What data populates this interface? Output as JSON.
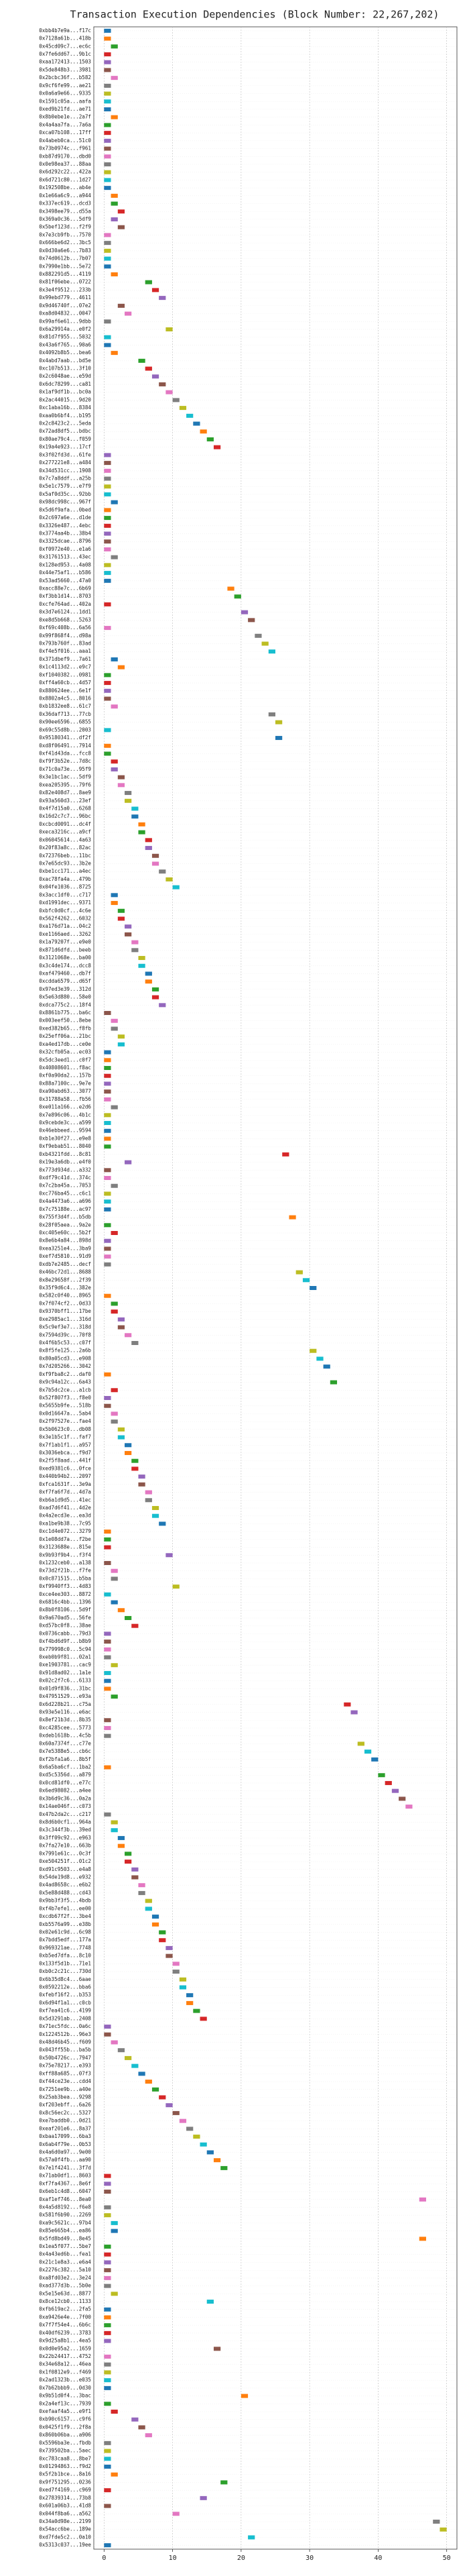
{
  "chart_data": {
    "type": "gantt",
    "title": "Transaction Execution Dependencies (Block Number: 22,267,202)",
    "categories": [
      "0xbb4b7e9a...f17c",
      "0x7128a61b...418b",
      "0x45cd09c7...ec6c",
      "0x7fe6dd67...9b1c",
      "0xaa172413...1503",
      "0x5de848b3...3981",
      "0x2bcbc36f...b582",
      "0x9cf6fe99...ae21",
      "0x0a6a9e66...9335",
      "0x1591c05a...aafa",
      "0xed9b21fd...ae71",
      "0x8b0ebe1e...2a7f",
      "0x4a4aa7fa...7a6a",
      "0xca07b108...17ff",
      "0x4abeb0ca...51c0",
      "0x73b0974c...f961",
      "0xb87d9170...dbd0",
      "0x0e98ea37...88aa",
      "0x6d292c22...422a",
      "0x6d721c80...1d27",
      "0x192508be...ab4e",
      "0x1e66a6c9...a944",
      "0x337ec619...dcd3",
      "0x3498ee79...d55a",
      "0x369a0c36...5df9",
      "0x5bef123d...f2f9",
      "0x7e3cb9fb...7570",
      "0x666be6d2...3bc5",
      "0x0d30a6e6...7b83",
      "0x74d0612b...7b07",
      "0x7990e1bb...5e72",
      "0x882291d5...4119",
      "0x81f06ebe...0722",
      "0x3e4f9512...233b",
      "0x99ebd779...4611",
      "0x9d46740f...07e2",
      "0xa8d04832...0047",
      "0x99af6e61...9dbb",
      "0x6a29914a...e0f2",
      "0x81d7f955...5032",
      "0x43a6f765...90a6",
      "0x4092b8b5...bea6",
      "0x4abd7aab...bd5e",
      "0xc107b513...3f10",
      "0x2c6048ae...e59d",
      "0x6dc78299...ca81",
      "0x1af9df1b...bc0a",
      "0x2ac44015...9d20",
      "0xc1aba16b...8384",
      "0xaa0b6bf4...b195",
      "0x2c8423c2...5eda",
      "0x72ad8df5...bdbc",
      "0x80ae79c4...f059",
      "0x19a4e923...17cf",
      "0x3f02fd3d...61fe",
      "0x277221e8...a484",
      "0x34d531cc...1908",
      "0x7c7a8ddf...a25b",
      "0x5e1c7579...e7f9",
      "0x5af0d35c...92bb",
      "0x98dc998c...967f",
      "0x5d6f9afa...0bed",
      "0x2c697a6e...d1de",
      "0x3326e487...4ebc",
      "0x3774aa4b...38b4",
      "0x3325dcae...8796",
      "0xf0972e40...e1a6",
      "0x31761513...43ec",
      "0x128ed953...4a08",
      "0x44e75af1...b586",
      "0x53ad5660...47a0",
      "0xacc88e7c...6b69",
      "0xf3bb1d14...8703",
      "0xcfe764ad...402a",
      "0x3d7e6124...1dd1",
      "0xe8d5b668...5263",
      "0xf69c408b...6a56",
      "0x99f868f4...d98a",
      "0x793b760f...83ad",
      "0xf4e5f016...aaa1",
      "0x371dbef9...7a61",
      "0x1c4113d2...e9c7",
      "0xf1040382...0981",
      "0xff4a60cb...4d57",
      "0x880624ee...6e1f",
      "0x8802a4c5...8016",
      "0xb1832ee8...61c7",
      "0x36daf713...77cb",
      "0x90ee6596...6855",
      "0x69c55d8b...2003",
      "0x95180341...df2f",
      "0xd8f06491...7914",
      "0xf41d43da...fcc8",
      "0xf9f3b52e...7d8c",
      "0x71c0a73e...95f9",
      "0x3e1bc1ac...5df9",
      "0xea205395...79f6",
      "0x82e408d7...8ae9",
      "0x93a560d3...23ef",
      "0x4f7d15a0...6268",
      "0x16d2c7c7...96bc",
      "0xcbcd0091...dc4f",
      "0xeca3216c...a9cf",
      "0x06045614...4a63",
      "0x20f83a8c...82ac",
      "0x72376beb...11bc",
      "0x7e65dc93...3b2e",
      "0xbe1cc171...a4ec",
      "0xac78fa4a...479b",
      "0x04fe1036...8725",
      "0x3acc1df0...c717",
      "0xd1991dec...9371",
      "0xbfc0d0cf...4c6e",
      "0x562f4262...6032",
      "0xa176d71a...04c2",
      "0xe1166aed...3262",
      "0x1a79207f...e9e0",
      "0x871d6dfd...beeb",
      "0x3121068e...ba00",
      "0x3c4de174...dcc8",
      "0xaf479460...db7f",
      "0xcdda6579...d65f",
      "0x97ed3e39...312d",
      "0x5e63d880...58e0",
      "0xdca775c2...18f4",
      "0x8861b775...ba6c",
      "0x003eef50...8ebe",
      "0xed382b65...f8fb",
      "0x25eff06a...21bc",
      "0xa4ed17db...ce0e",
      "0x32cfb05a...ec03",
      "0x5dc3eed1...c0f7",
      "0x40808601...f8ac",
      "0xf0a90da2...157b",
      "0x88a7100c...9e7e",
      "0xa90abd63...3077",
      "0x31788a58...fb56",
      "0xe011a166...e2d6",
      "0x7e896c06...4b1c",
      "0x9cebde3c...a599",
      "0x46ebbeed...9594",
      "0xb1e30f27...e9e8",
      "0xf9ebab51...8040",
      "0xb4321fdd...8c81",
      "0x19e3a6db...e4f0",
      "0x773d934d...a332",
      "0xdf79c41d...374c",
      "0x7c2ba45a...7053",
      "0xc776ba45...c6c1",
      "0x4a4473a6...a696",
      "0x7c75188e...ac97",
      "0x755f3d4f...b5db",
      "0x28f05aea...9a2e",
      "0xc405e60c...5b2f",
      "0x8e6b4a84...898d",
      "0xea3251e4...3ba9",
      "0xef7d5810...91d9",
      "0xdb7e2485...decf",
      "0x46bc72d1...8688",
      "0x8e29658f...2f39",
      "0x35f9d6c4...382e",
      "0x582c0f40...8965",
      "0x7f074cf2...0d33",
      "0x9370bff1...17be",
      "0xe2985ac1...316d",
      "0x5c9ef3e7...318d",
      "0x7594d39c...70f8",
      "0x4f6b5c53...c07f",
      "0x8f5fe125...2a6b",
      "0x80a05cd3...e908",
      "0x7d205266...3042",
      "0xf9fba8c2...daf0",
      "0x9c94a12c...6a43",
      "0x7b5dc2ce...a1cb",
      "0x52f807f3...f8e0",
      "0x5655b9fe...518b",
      "0x0d16647a...5ab4",
      "0x2f97527e...fae4",
      "0x5b0623c0...db08",
      "0x3e1b5c1f...faf7",
      "0x7f1ab1f1...a957",
      "0x3036ebca...f9d7",
      "0x2f5f8aad...441f",
      "0xed9381c6...0fce",
      "0x440b94b2...2097",
      "0xfca1631f...3e9a",
      "0xf7fa6f7d...4d7a",
      "0xb6a1d9d5...41ec",
      "0xad7d6f41...4d2e",
      "0x4a2ecd3e...ea3d",
      "0xa1be9b38...7c95",
      "0xc1d4e072...3279",
      "0x1e08dd7a...f2be",
      "0x3123688e...815e",
      "0x9b93f9b4...f3f4",
      "0x1232ceb0...a138",
      "0x73d2f21b...f7fe",
      "0x0c871515...b5ba",
      "0xf9940ff3...4d83",
      "0xce4ee303...8872",
      "0x6816c4bb...1396",
      "0x8b0f8106...5d9f",
      "0x9a670ad5...56fe",
      "0xd57bc0f8...38ae",
      "0x0736cabb...79d3",
      "0xf4bd6d9f...b8b9",
      "0x779998c0...5c94",
      "0xeb0b9f81...02a1",
      "0xe1903781...cac9",
      "0x91d8ad02...1a1e",
      "0x02c2f7c6...6133",
      "0x01d9f836...31bc",
      "0x47951529...e93a",
      "0x6d228b21...c75a",
      "0x93e5e116...e6ac",
      "0x8ef21b3d...8b35",
      "0xc4285cee...5773",
      "0xdeb1618b...4c5b",
      "0x60a7374f...c77e",
      "0x7e5388e5...cb6c",
      "0xf2bfa1a6...8b5f",
      "0x6a5ba6cf...1ba2",
      "0xd5c5356d...a879",
      "0x0cd81df0...e77c",
      "0x6ed98082...a4ee",
      "0x3b6d9c36...0a2a",
      "0x14ae046f...c073",
      "0x47b2da2c...c217",
      "0x8d6b0cf1...964a",
      "0x3c344f3b...39ed",
      "0x3ff09c92...e963",
      "0x7fa27e10...663b",
      "0x7991e61c...0c3f",
      "0xe504251f...01c2",
      "0xd91c9503...e4a8",
      "0x54de19d8...e932",
      "0x4ad8658c...e6b2",
      "0x5e88d488...cd43",
      "0x9bb3f3f5...4bdb",
      "0xf4b7efe1...ee00",
      "0xcdb67f2f...3be4",
      "0xb5576a99...e38b",
      "0x02e61c9d...6c98",
      "0x7bdd5edf...177a",
      "0x969321ae...7748",
      "0xb5ed7dfa...8c10",
      "0x133f5d1b...71e1",
      "0xb0c2c21c...730d",
      "0x6b35d8c4...6aae",
      "0x0592212e...bba6",
      "0xfebf16f2...b353",
      "0x6d94f1a1...c0cb",
      "0xf7ea41c6...4199",
      "0x5d3291ab...2408",
      "0x71ec5fdc...0a6c",
      "0x1224512b...96e3",
      "0x48d46b45...f609",
      "0x043ff55b...ba5b",
      "0x50b4726c...7947",
      "0x75e78217...e393",
      "0xff88a685...07f3",
      "0xf44ce23e...cdd4",
      "0x7251ee9b...a40e",
      "0x25ab3bea...9298",
      "0xf203ebff...6a26",
      "0x8c56ec2c...5327",
      "0xe7baddb0...0d21",
      "0xeaf201e6...8a37",
      "0xbaa17099...6ba3",
      "0x6ab4f79e...0b53",
      "0x4a6d0a97...9e00",
      "0x57a0f4fb...aa90",
      "0x7e1f4241...3f7d",
      "0x71ab0df1...8603",
      "0xf7fa4367...8e6f",
      "0x6eb1c4d8...6047",
      "0xaf1ef746...8ea0",
      "0x4a5d8192...f6e8",
      "0x581f6b90...2269",
      "0xa9c5621c...97b4",
      "0x85e665b4...ea86",
      "0x5fd8bd49...8e45",
      "0x1ea5f077...5be7",
      "0x4a43ed6b...fea1",
      "0x21c1e8a3...e6a4",
      "0x2276c382...5a10",
      "0xa8fd03e2...3e24",
      "0xad377d3b...5b0e",
      "0x5e15e63d...8877",
      "0x8ce12cb0...1133",
      "0xfb619ac2...2fa5",
      "0xa9426e4e...7f00",
      "0x7f7f54e4...6b6c",
      "0x40df6239...3783",
      "0x9d25a8b1...4ea5",
      "0x0d0e95a2...1659",
      "0x22b24417...4752",
      "0x34e68a12...46ea",
      "0x1f0812e9...f469",
      "0x2ad1323b...e035",
      "0x7b62bbb9...0d30",
      "0x9b51d0f4...3bac",
      "0x2a4ef13c...7939",
      "0xefaaf4a5...e9f1",
      "0xb90c6157...c9f6",
      "0x0425f1f9...2f8a",
      "0x860b06ba...a906",
      "0x5596ba3e...fbdb",
      "0x739502ba...5aec",
      "0xc783caa8...8be7",
      "0x01294863...f9d2",
      "0x5f2b1bce...8a16",
      "0x9f751295...0236",
      "0xed7f4169...c969",
      "0x27839314...73b8",
      "0x601a06b3...41d8",
      "0x044f8ba6...a562",
      "0x34a0d98e...2199",
      "0x54acc6be...189e",
      "0xd7fde5c2...0a10",
      "0x5313c037...19ee"
    ],
    "values": [
      0,
      0,
      1,
      0,
      0,
      0,
      1,
      0,
      0,
      0,
      0,
      1,
      0,
      0,
      0,
      0,
      0,
      0,
      0,
      0,
      0,
      1,
      1,
      2,
      1,
      2,
      0,
      0,
      0,
      0,
      0,
      1,
      6,
      7,
      8,
      2,
      3,
      0,
      9,
      0,
      0,
      1,
      5,
      6,
      7,
      8,
      9,
      10,
      11,
      12,
      13,
      14,
      15,
      16,
      0,
      0,
      0,
      0,
      0,
      0,
      1,
      0,
      0,
      0,
      0,
      0,
      0,
      1,
      0,
      0,
      0,
      18,
      19,
      0,
      20,
      21,
      0,
      22,
      23,
      24,
      1,
      2,
      0,
      0,
      0,
      0,
      1,
      24,
      25,
      0,
      25,
      0,
      0,
      1,
      1,
      2,
      2,
      3,
      3,
      4,
      4,
      5,
      5,
      6,
      6,
      7,
      7,
      8,
      9,
      10,
      1,
      1,
      2,
      2,
      3,
      3,
      4,
      4,
      5,
      5,
      6,
      6,
      7,
      7,
      8,
      0,
      1,
      1,
      2,
      2,
      0,
      0,
      0,
      0,
      0,
      0,
      0,
      1,
      0,
      0,
      0,
      0,
      0,
      26,
      3,
      0,
      0,
      1,
      0,
      0,
      0,
      27,
      0,
      1,
      0,
      0,
      0,
      0,
      28,
      29,
      30,
      0,
      1,
      1,
      2,
      2,
      3,
      4,
      30,
      31,
      32,
      0,
      33,
      1,
      0,
      0,
      1,
      1,
      2,
      2,
      3,
      3,
      4,
      4,
      5,
      5,
      6,
      6,
      7,
      7,
      8,
      0,
      0,
      0,
      9,
      0,
      1,
      1,
      10,
      0,
      1,
      2,
      3,
      4,
      0,
      0,
      0,
      0,
      1,
      0,
      0,
      0,
      1,
      35,
      36,
      0,
      0,
      0,
      37,
      38,
      39,
      0,
      40,
      41,
      42,
      43,
      44,
      0,
      1,
      1,
      2,
      2,
      3,
      3,
      4,
      4,
      5,
      5,
      6,
      6,
      7,
      7,
      8,
      8,
      9,
      9,
      10,
      10,
      11,
      11,
      12,
      12,
      13,
      14,
      0,
      0,
      1,
      2,
      3,
      4,
      5,
      6,
      7,
      8,
      9,
      10,
      11,
      12,
      13,
      14,
      15,
      16,
      17,
      0,
      0,
      0,
      46,
      0,
      0,
      1,
      1,
      46,
      0,
      0,
      0,
      0,
      0,
      0,
      1,
      15,
      0,
      0,
      0,
      0,
      0,
      16,
      0,
      0,
      0,
      0,
      0,
      20,
      0,
      1,
      4,
      5,
      6,
      0,
      0,
      0,
      0,
      1,
      17,
      0,
      14,
      0,
      10,
      48,
      49,
      21,
      0
    ],
    "palette": [
      "#1f77b4",
      "#ff7f0e",
      "#2ca02c",
      "#d62728",
      "#9467bd",
      "#8c564b",
      "#e377c2",
      "#7f7f7f",
      "#bcbd22",
      "#17becf"
    ],
    "xlim": [
      -1.5,
      51.5
    ],
    "xticks": [
      0,
      10,
      20,
      30,
      40,
      50
    ],
    "grid": true
  }
}
